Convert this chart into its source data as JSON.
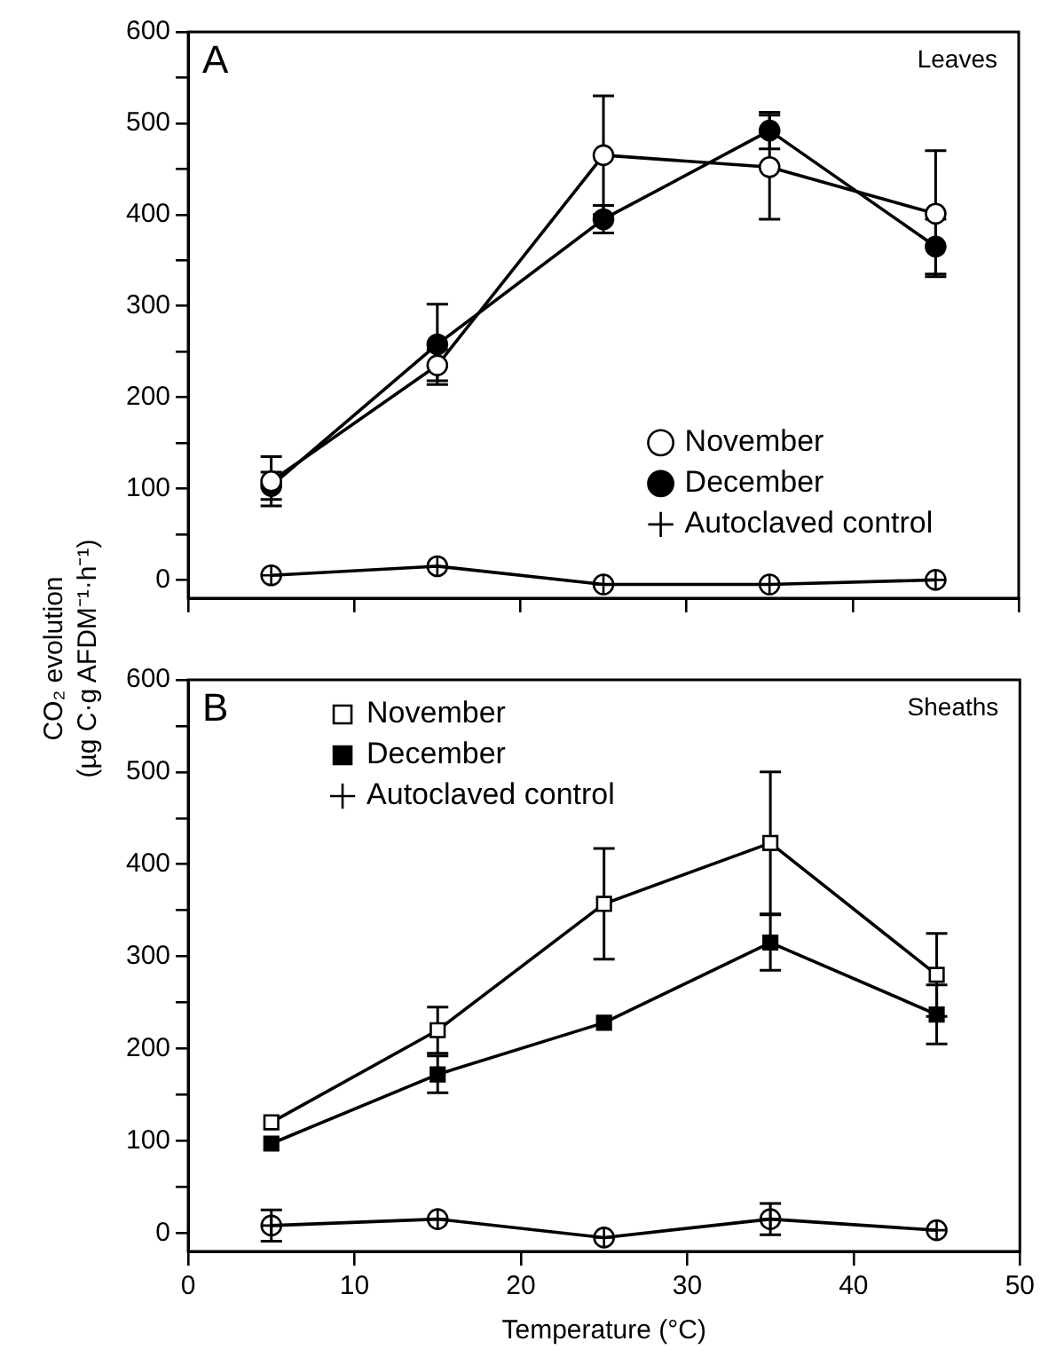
{
  "chart_data": [
    {
      "type": "line",
      "ylabel": "CO₂ evolution\n(µg C·g AFDM⁻¹·h⁻¹)",
      "annotations": [
        "A",
        "Leaves"
      ],
      "xlim": [
        0,
        50
      ],
      "xticks": [
        0,
        10,
        20,
        30,
        40,
        50
      ],
      "ylim": [
        -20,
        600
      ],
      "yticks": [
        0,
        {
          "value": 50,
          "label": null
        },
        100,
        {
          "value": 150,
          "label": null
        },
        200,
        {
          "value": 250,
          "label": null
        },
        300,
        {
          "value": 350,
          "label": null
        },
        400,
        {
          "value": 450,
          "label": null
        },
        500,
        {
          "value": 550,
          "label": null
        },
        600
      ],
      "tick_labels": "y",
      "grid": false,
      "legend": "right",
      "x": [
        5,
        15,
        25,
        35,
        45
      ],
      "series": [
        {
          "name": "November",
          "color": "#000000",
          "colors": [
            "#ffffff",
            "#ffffff",
            "#ffffff",
            "#ffffff",
            "#ffffff"
          ],
          "marker": "circle",
          "values": [
            108,
            235,
            465,
            452,
            401
          ],
          "errors": [
            27,
            17,
            65,
            57,
            69
          ]
        },
        {
          "name": "December",
          "color": "#000000",
          "marker": "circle",
          "values": [
            103,
            258,
            395,
            492,
            365
          ],
          "errors": [
            15,
            44,
            15,
            20,
            30
          ]
        },
        {
          "name": "Autoclaved control",
          "color": "#000000",
          "marker": "cross",
          "values": [
            5,
            15,
            -5,
            -5,
            0
          ]
        }
      ]
    },
    {
      "type": "line",
      "xlabel": "Temperature (°C)",
      "annotations": [
        "B",
        "Sheaths"
      ],
      "xlim": [
        0,
        50
      ],
      "xticks": [
        0,
        10,
        20,
        30,
        40,
        50
      ],
      "ylim": [
        -20,
        600
      ],
      "yticks": [
        0,
        {
          "value": 50,
          "label": null
        },
        100,
        {
          "value": 150,
          "label": null
        },
        200,
        {
          "value": 250,
          "label": null
        },
        300,
        {
          "value": 350,
          "label": null
        },
        400,
        {
          "value": 450,
          "label": null
        },
        500,
        {
          "value": 550,
          "label": null
        },
        600
      ],
      "grid": false,
      "legend": "top left",
      "x": [
        5,
        15,
        25,
        35,
        45
      ],
      "series": [
        {
          "name": "November",
          "color": "#000000",
          "colors": [
            "#ffffff",
            "#ffffff",
            "#ffffff",
            "#ffffff",
            "#ffffff"
          ],
          "marker": "square",
          "values": [
            120,
            220,
            357,
            423,
            280
          ],
          "errors": [
            null,
            25,
            60,
            77,
            45
          ]
        },
        {
          "name": "December",
          "color": "#000000",
          "marker": "square",
          "values": [
            97,
            172,
            228,
            315,
            237
          ],
          "errors": [
            null,
            20,
            null,
            30,
            32
          ]
        },
        {
          "name": "Autoclaved control",
          "color": "#000000",
          "marker": "cross",
          "values": [
            8,
            15,
            -5,
            15,
            3
          ],
          "errors": [
            17,
            null,
            null,
            17,
            null
          ]
        }
      ]
    }
  ]
}
